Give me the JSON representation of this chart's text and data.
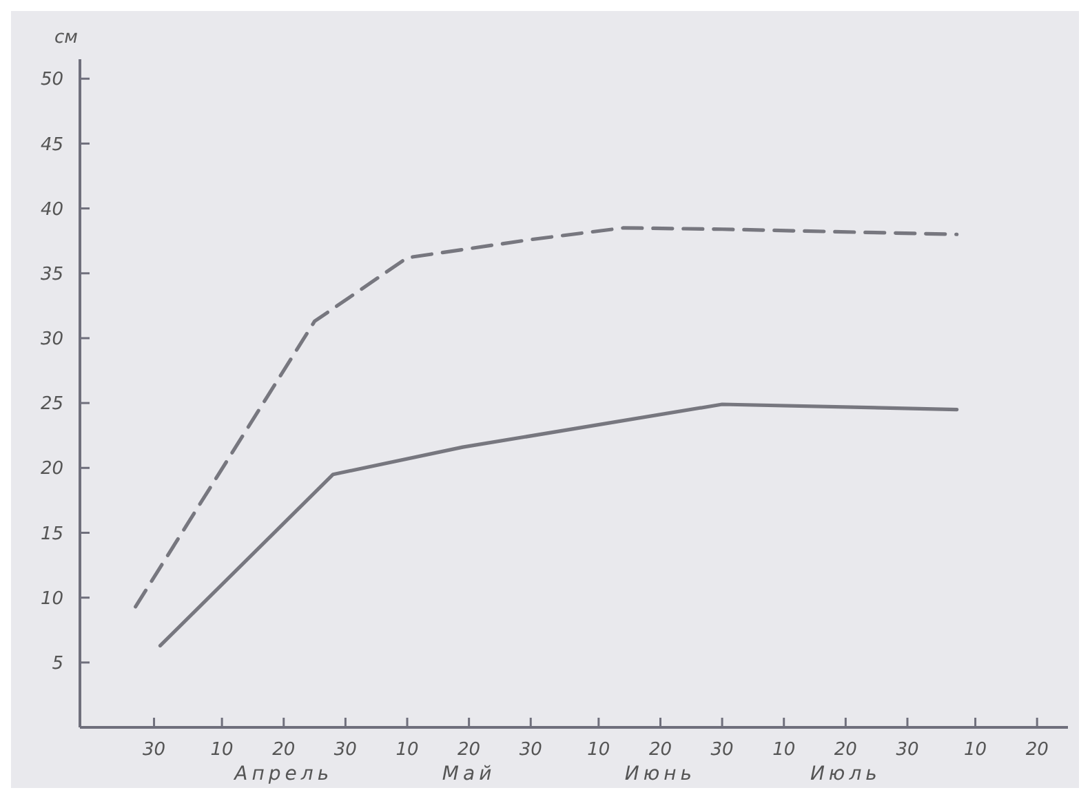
{
  "chart_data": {
    "type": "line",
    "ylabel": "см",
    "xlim": [
      "--03-18",
      "--08-25"
    ],
    "xticks": [
      {
        "value": "--03-30",
        "label": "30"
      },
      {
        "value": "--04-10",
        "label": "10"
      },
      {
        "value": "--04-20",
        "label": "20"
      },
      {
        "value": "--04-30",
        "label": "30"
      },
      {
        "value": "--05-10",
        "label": "10"
      },
      {
        "value": "--05-20",
        "label": "20"
      },
      {
        "value": "--05-30",
        "label": "30"
      },
      {
        "value": "--06-10",
        "label": "10"
      },
      {
        "value": "--06-20",
        "label": "20"
      },
      {
        "value": "--06-30",
        "label": "30"
      },
      {
        "value": "--07-10",
        "label": "10"
      },
      {
        "value": "--07-20",
        "label": "20"
      },
      {
        "value": "--07-30",
        "label": "30"
      },
      {
        "value": "--08-10",
        "label": "10"
      },
      {
        "value": "--08-20",
        "label": "20"
      }
    ],
    "annotations": [
      "Апрель",
      "Май",
      "Июнь",
      "Июль"
    ],
    "ylim": [
      0,
      51.5
    ],
    "yticks": [
      5,
      10,
      15,
      20,
      25,
      30,
      35,
      40,
      45,
      50
    ],
    "series": [
      {
        "color": "#77777f",
        "line_style": "dashed",
        "x": [
          "--03-27",
          "--04-25",
          "--05-10",
          "--05-30",
          "--06-14",
          "--06-30",
          "--08-07"
        ],
        "values": [
          9.3,
          31.3,
          36.2,
          37.6,
          38.5,
          38.4,
          38.0
        ]
      },
      {
        "color": "#77777f",
        "line_style": "solid",
        "x": [
          "--03-31",
          "--04-28",
          "--05-19",
          "--06-30",
          "--08-07"
        ],
        "values": [
          6.3,
          19.5,
          21.6,
          24.9,
          24.5
        ]
      }
    ]
  }
}
